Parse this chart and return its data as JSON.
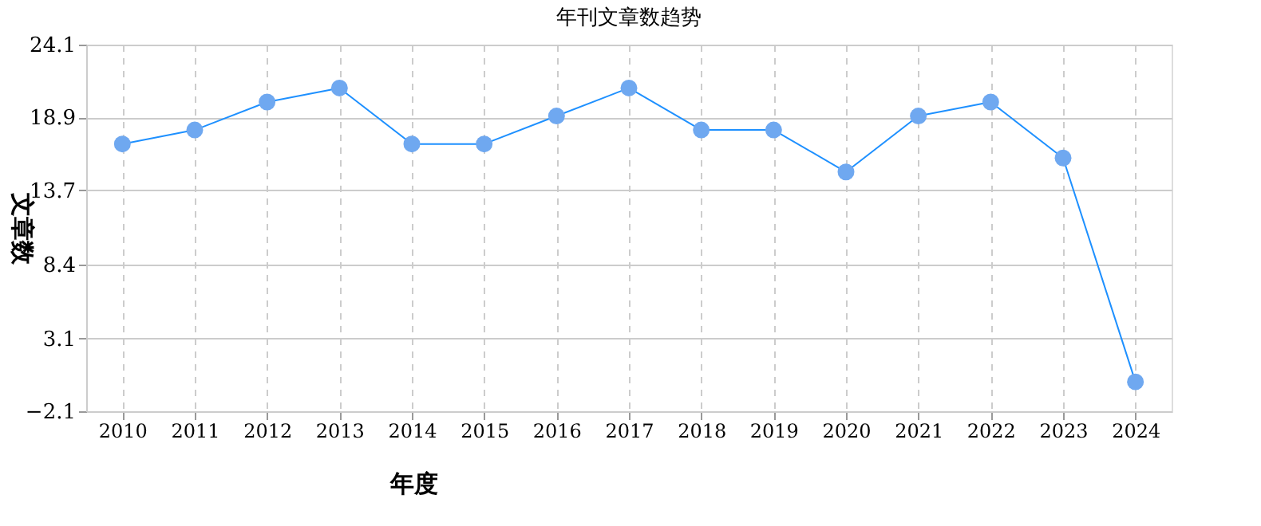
{
  "chart_data": {
    "type": "line",
    "title": "年刊文章数趋势",
    "xlabel": "年度",
    "ylabel": "文章数",
    "categories": [
      "2010",
      "2011",
      "2012",
      "2013",
      "2014",
      "2015",
      "2016",
      "2017",
      "2018",
      "2019",
      "2020",
      "2021",
      "2022",
      "2023",
      "2024"
    ],
    "series": [
      {
        "color": "#1e90ff",
        "values": [
          17,
          18,
          20,
          21,
          17,
          17,
          19,
          21,
          18,
          18,
          15,
          19,
          20,
          16,
          0
        ]
      }
    ],
    "ylim": [
      -2.1,
      24.1
    ],
    "yticks": [
      -2.1,
      3.1,
      8.4,
      13.7,
      18.9,
      24.1
    ],
    "grid": true,
    "marker": "circle",
    "line_style": "solid"
  }
}
